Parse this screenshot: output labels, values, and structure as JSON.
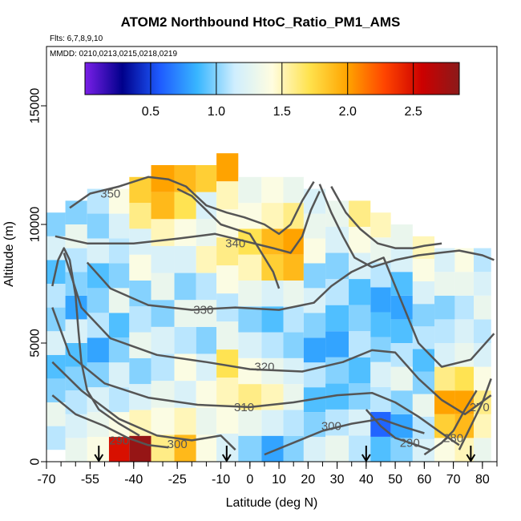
{
  "chart_data": {
    "type": "heatmap",
    "title": "ATOM2 Northbound HtoC_Ratio_PM1_AMS",
    "flights_label": "Flts: 6,7,8,9,10",
    "dates_label": "MMDD: 0210,0213,0215,0218,0219",
    "xlabel": "Latitude (deg N)",
    "ylabel": "Altitude (m)",
    "xlim": [
      -70,
      85
    ],
    "ylim": [
      0,
      17500
    ],
    "x_ticks": [
      -70,
      -55,
      -40,
      -25,
      -10,
      0,
      10,
      20,
      30,
      40,
      50,
      60,
      70,
      80
    ],
    "x_tick_labels": [
      "-70",
      "-55",
      "-40",
      "-25",
      "-10",
      "0",
      "10",
      "20",
      "30",
      "40",
      "50",
      "60",
      "70",
      "80"
    ],
    "y_ticks": [
      0,
      5000,
      10000,
      15000
    ],
    "y_tick_labels": [
      "0",
      "5000",
      "10000",
      "15000"
    ],
    "colorbar": {
      "range": [
        0.0,
        2.85
      ],
      "ticks": [
        0.5,
        1.0,
        1.5,
        2.0,
        2.5
      ],
      "tick_labels": [
        "0.5",
        "1.0",
        "1.5",
        "2.0",
        "2.5"
      ],
      "colors": [
        "#7a1fe8",
        "#00008b",
        "#1e5bff",
        "#38b6ff",
        "#cfeefe",
        "#fffde0",
        "#ffe24d",
        "#ffa500",
        "#ff4500",
        "#cc0000",
        "#8b1a1a"
      ]
    },
    "descent_markers_lat": [
      -52,
      -8,
      40,
      76
    ],
    "grid": false,
    "legend": "colorbar top",
    "heatmap_columns": [
      {
        "lat": -67,
        "alt_min": 500,
        "alt_max": 10500,
        "values": [
          1.1,
          1.3,
          1.0,
          0.9,
          1.2,
          1.0,
          1.1,
          0.9,
          1.2,
          1.0
        ]
      },
      {
        "lat": -60,
        "alt_min": 0,
        "alt_max": 11000,
        "values": [
          1.3,
          1.2,
          1.1,
          1.0,
          0.9,
          1.2,
          0.8,
          1.0,
          1.1,
          1.3,
          1.0
        ]
      },
      {
        "lat": -52,
        "alt_min": 0,
        "alt_max": 11500,
        "values": [
          1.4,
          1.3,
          1.2,
          1.0,
          0.8,
          1.1,
          1.0,
          0.9,
          1.2,
          1.0,
          1.1
        ]
      },
      {
        "lat": -45,
        "alt_min": 0,
        "alt_max": 11500,
        "values": [
          2.5,
          1.4,
          1.1,
          1.2,
          1.0,
          0.9,
          1.3,
          1.0,
          1.1,
          1.2,
          1.4
        ]
      },
      {
        "lat": -38,
        "alt_min": 0,
        "alt_max": 12000,
        "values": [
          2.8,
          1.5,
          1.2,
          1.0,
          1.3,
          1.1,
          1.0,
          1.4,
          1.2,
          1.6,
          1.8
        ]
      },
      {
        "lat": -30,
        "alt_min": 0,
        "alt_max": 12500,
        "values": [
          1.6,
          1.4,
          1.3,
          1.1,
          1.2,
          1.0,
          1.3,
          1.2,
          1.5,
          1.9,
          2.0
        ]
      },
      {
        "lat": -22,
        "alt_min": 0,
        "alt_max": 12500,
        "values": [
          1.9,
          1.5,
          1.2,
          1.4,
          1.1,
          1.3,
          1.0,
          1.2,
          1.4,
          1.7,
          1.9
        ]
      },
      {
        "lat": -15,
        "alt_min": 0,
        "alt_max": 12500,
        "values": [
          1.4,
          1.3,
          1.4,
          1.2,
          1.0,
          1.3,
          1.1,
          1.5,
          1.3,
          1.2,
          1.8
        ]
      },
      {
        "lat": -8,
        "alt_min": 0,
        "alt_max": 13000,
        "values": [
          1.2,
          1.4,
          1.5,
          1.7,
          1.3,
          1.1,
          1.4,
          1.6,
          1.4,
          1.5,
          2.0
        ]
      },
      {
        "lat": 0,
        "alt_min": 0,
        "alt_max": 12000,
        "values": [
          1.0,
          1.3,
          1.6,
          1.4,
          1.2,
          1.0,
          1.3,
          1.5,
          1.7,
          1.4,
          1.3
        ]
      },
      {
        "lat": 8,
        "alt_min": 0,
        "alt_max": 12000,
        "values": [
          0.8,
          1.2,
          1.5,
          1.3,
          1.1,
          0.9,
          1.2,
          1.8,
          1.9,
          1.5,
          1.4
        ]
      },
      {
        "lat": 15,
        "alt_min": 0,
        "alt_max": 12000,
        "values": [
          1.0,
          1.1,
          1.3,
          1.2,
          1.0,
          1.1,
          1.3,
          1.9,
          2.0,
          1.6,
          1.3
        ]
      },
      {
        "lat": 22,
        "alt_min": 0,
        "alt_max": 11500,
        "values": [
          1.2,
          1.0,
          0.9,
          1.1,
          0.8,
          1.0,
          1.2,
          1.0,
          1.4,
          1.3,
          1.2
        ]
      },
      {
        "lat": 30,
        "alt_min": 0,
        "alt_max": 11000,
        "values": [
          1.3,
          1.1,
          0.9,
          1.0,
          0.8,
          0.9,
          1.1,
          1.0,
          1.2,
          1.3
        ]
      },
      {
        "lat": 38,
        "alt_min": 0,
        "alt_max": 11000,
        "values": [
          1.1,
          1.2,
          1.0,
          0.9,
          1.1,
          1.0,
          0.9,
          1.2,
          1.4,
          1.6
        ]
      },
      {
        "lat": 45,
        "alt_min": 0,
        "alt_max": 10500,
        "values": [
          0.9,
          0.6,
          1.1,
          1.2,
          1.0,
          0.9,
          0.8,
          1.1,
          1.3,
          1.5
        ]
      },
      {
        "lat": 52,
        "alt_min": 0,
        "alt_max": 10000,
        "values": [
          1.0,
          0.8,
          1.0,
          1.3,
          1.1,
          0.9,
          0.8,
          0.9,
          1.2,
          1.3
        ]
      },
      {
        "lat": 60,
        "alt_min": 0,
        "alt_max": 9500,
        "values": [
          1.2,
          1.1,
          1.3,
          1.0,
          0.9,
          1.1,
          1.0,
          1.2,
          1.4,
          1.5
        ]
      },
      {
        "lat": 67,
        "alt_min": 0,
        "alt_max": 9000,
        "values": [
          1.4,
          1.8,
          2.0,
          1.6,
          1.2,
          1.1,
          1.0,
          1.3,
          1.2
        ]
      },
      {
        "lat": 74,
        "alt_min": 0,
        "alt_max": 9000,
        "values": [
          1.5,
          1.9,
          2.0,
          1.7,
          1.3,
          1.2,
          1.1,
          1.3,
          1.4
        ]
      },
      {
        "lat": 80,
        "alt_min": 0,
        "alt_max": 9000,
        "values": [
          1.3,
          1.5,
          1.6,
          1.4,
          1.2,
          1.1,
          1.3,
          1.2,
          1.1
        ]
      }
    ],
    "contours": [
      {
        "label": "290",
        "label_at": [
          -45,
          900
        ],
        "points": [
          [
            -68,
            2800
          ],
          [
            -60,
            2000
          ],
          [
            -50,
            1500
          ],
          [
            -42,
            1000
          ],
          [
            -35,
            700
          ],
          [
            -28,
            600
          ]
        ]
      },
      {
        "label": "300",
        "label_at": [
          -25,
          750
        ],
        "points": [
          [
            -68,
            4200
          ],
          [
            -58,
            3000
          ],
          [
            -45,
            1800
          ],
          [
            -32,
            1100
          ],
          [
            -20,
            900
          ],
          [
            -10,
            1100
          ],
          [
            -5,
            500
          ]
        ]
      },
      {
        "label": "300",
        "label_at": [
          28,
          1500
        ],
        "points": [
          [
            5,
            300
          ],
          [
            15,
            800
          ],
          [
            25,
            1300
          ],
          [
            35,
            1600
          ],
          [
            45,
            1800
          ],
          [
            52,
            1500
          ],
          [
            60,
            1200
          ]
        ]
      },
      {
        "label": "290",
        "label_at": [
          55,
          800
        ],
        "points": [
          [
            40,
            2200
          ],
          [
            45,
            1500
          ],
          [
            50,
            1000
          ],
          [
            55,
            800
          ],
          [
            62,
            500
          ]
        ]
      },
      {
        "label": "280",
        "label_at": [
          70,
          1000
        ],
        "points": [
          [
            60,
            300
          ],
          [
            66,
            800
          ],
          [
            70,
            1300
          ],
          [
            74,
            2200
          ],
          [
            78,
            3000
          ]
        ]
      },
      {
        "label": "270",
        "label_at": [
          79,
          2300
        ],
        "points": [
          [
            72,
            500
          ],
          [
            76,
            1500
          ],
          [
            80,
            2500
          ],
          [
            83,
            3500
          ]
        ]
      },
      {
        "label": "310",
        "label_at": [
          -2,
          2300
        ],
        "points": [
          [
            -68,
            6500
          ],
          [
            -62,
            4500
          ],
          [
            -50,
            3300
          ],
          [
            -35,
            2700
          ],
          [
            -18,
            2400
          ],
          [
            0,
            2300
          ],
          [
            15,
            2500
          ],
          [
            30,
            2800
          ],
          [
            42,
            2900
          ],
          [
            50,
            2500
          ],
          [
            58,
            1900
          ],
          [
            66,
            1200
          ],
          [
            72,
            700
          ]
        ]
      },
      {
        "label": "320",
        "label_at": [
          5,
          4000
        ],
        "points": [
          [
            -64,
            8800
          ],
          [
            -58,
            6500
          ],
          [
            -48,
            5200
          ],
          [
            -32,
            4500
          ],
          [
            -15,
            4200
          ],
          [
            0,
            3900
          ],
          [
            18,
            3800
          ],
          [
            32,
            4200
          ],
          [
            42,
            4700
          ],
          [
            50,
            4600
          ],
          [
            58,
            3500
          ],
          [
            66,
            2600
          ],
          [
            74,
            2000
          ],
          [
            83,
            2800
          ]
        ]
      },
      {
        "label": "330",
        "label_at": [
          -16,
          6400
        ],
        "points": [
          [
            -56,
            8400
          ],
          [
            -48,
            7300
          ],
          [
            -35,
            6600
          ],
          [
            -20,
            6400
          ],
          [
            -5,
            6500
          ],
          [
            10,
            6400
          ],
          [
            22,
            6700
          ],
          [
            28,
            7400
          ],
          [
            35,
            8000
          ],
          [
            42,
            8400
          ],
          [
            46,
            8600
          ],
          [
            52,
            6800
          ],
          [
            58,
            5000
          ],
          [
            66,
            4000
          ],
          [
            76,
            4300
          ],
          [
            84,
            5400
          ]
        ]
      },
      {
        "label": "340",
        "label_at": [
          -5,
          9200
        ],
        "points": [
          [
            -67,
            9500
          ],
          [
            -56,
            9200
          ],
          [
            -40,
            9200
          ],
          [
            -25,
            9400
          ],
          [
            -12,
            9600
          ],
          [
            -2,
            9300
          ],
          [
            8,
            9000
          ],
          [
            14,
            8800
          ],
          [
            18,
            9500
          ],
          [
            21,
            10600
          ],
          [
            24,
            11400
          ]
        ]
      },
      {
        "label": "350",
        "label_at": [
          -48,
          11300
        ],
        "points": [
          [
            -62,
            10700
          ],
          [
            -55,
            11300
          ],
          [
            -45,
            11600
          ],
          [
            -35,
            12000
          ],
          [
            -28,
            11900
          ],
          [
            -22,
            11600
          ],
          [
            -15,
            10800
          ],
          [
            -8,
            10500
          ],
          [
            -2,
            10300
          ],
          [
            5,
            10000
          ],
          [
            10,
            9600
          ],
          [
            14,
            10000
          ],
          [
            18,
            11000
          ],
          [
            22,
            11800
          ]
        ]
      },
      {
        "label": "",
        "label_at": [
          0,
          0
        ],
        "points": [
          [
            24,
            11700
          ],
          [
            28,
            10500
          ],
          [
            32,
            9500
          ],
          [
            36,
            8600
          ],
          [
            42,
            8200
          ],
          [
            50,
            8500
          ],
          [
            58,
            8700
          ],
          [
            65,
            8800
          ],
          [
            72,
            8900
          ],
          [
            80,
            8700
          ],
          [
            84,
            8500
          ]
        ]
      },
      {
        "label": "",
        "label_at": [
          0,
          0
        ],
        "points": [
          [
            -68,
            7400
          ],
          [
            -66,
            8500
          ],
          [
            -64,
            9000
          ],
          [
            -62,
            8500
          ],
          [
            -60,
            7000
          ],
          [
            -59,
            5500
          ],
          [
            -58,
            4200
          ],
          [
            -56,
            3000
          ],
          [
            -52,
            2200
          ],
          [
            -45,
            1600
          ],
          [
            -38,
            1100
          ]
        ]
      },
      {
        "label": "",
        "label_at": [
          0,
          0
        ],
        "points": [
          [
            -25,
            11500
          ],
          [
            -20,
            11200
          ],
          [
            -15,
            10600
          ],
          [
            -10,
            10000
          ],
          [
            -5,
            9800
          ],
          [
            0,
            9600
          ],
          [
            4,
            8800
          ],
          [
            8,
            8000
          ],
          [
            10,
            7300
          ]
        ]
      },
      {
        "label": "",
        "label_at": [
          0,
          0
        ],
        "points": [
          [
            28,
            11600
          ],
          [
            33,
            10500
          ],
          [
            38,
            9800
          ],
          [
            44,
            9200
          ],
          [
            50,
            9000
          ],
          [
            56,
            9000
          ],
          [
            60,
            9100
          ],
          [
            66,
            9200
          ]
        ]
      }
    ]
  }
}
